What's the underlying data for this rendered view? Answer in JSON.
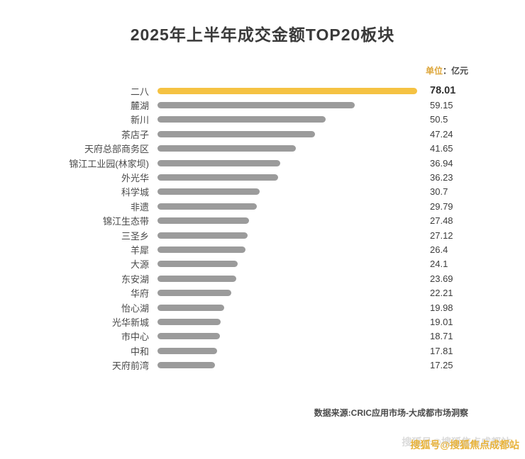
{
  "title": "2025年上半年成交金额TOP20板块",
  "unit": {
    "prefix": "单位",
    "suffix": "：亿元"
  },
  "chart_data": {
    "type": "bar",
    "orientation": "horizontal",
    "title": "2025年上半年成交金额TOP20板块",
    "unit": "亿元",
    "categories": [
      "二八",
      "麓湖",
      "新川",
      "茶店子",
      "天府总部商务区",
      "锦江工业园(林家坝)",
      "外光华",
      "科学城",
      "非遗",
      "锦江生态带",
      "三圣乡",
      "羊犀",
      "大源",
      "东安湖",
      "华府",
      "怡心湖",
      "光华新城",
      "市中心",
      "中和",
      "天府前湾"
    ],
    "values": [
      78.01,
      59.15,
      50.5,
      47.24,
      41.65,
      36.94,
      36.23,
      30.7,
      29.79,
      27.48,
      27.12,
      26.4,
      24.1,
      23.69,
      22.21,
      19.98,
      19.01,
      18.71,
      17.81,
      17.25
    ],
    "xlim": [
      0,
      78.01
    ],
    "grid": false,
    "legend": false,
    "highlight_index": 0,
    "highlight_color": "#F5C242",
    "bar_color": "#9B9B9B"
  },
  "source": "数据来源:CRIC应用市场-大成都市场洞察",
  "watermark": "搜狐号@搜狐焦点成都站"
}
